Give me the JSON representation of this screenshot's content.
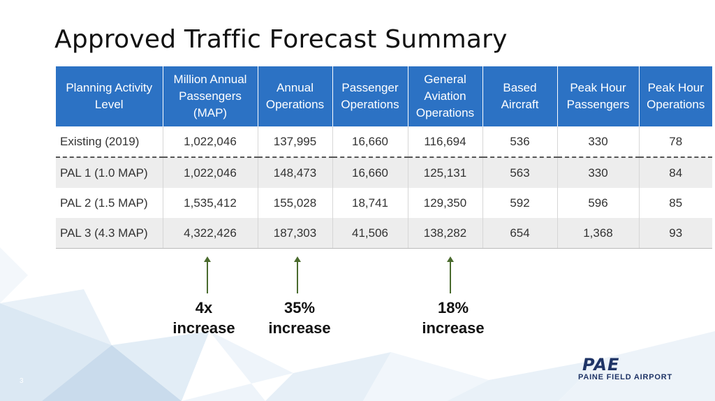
{
  "slide": {
    "title": "Approved Traffic Forecast Summary",
    "page_number": "3"
  },
  "table": {
    "headers": [
      "Planning Activity Level",
      "Million Annual Passengers (MAP)",
      "Annual Operations",
      "Passenger Operations",
      "General Aviation Operations",
      "Based Aircraft",
      "Peak Hour Passengers",
      "Peak Hour Operations"
    ],
    "rows": [
      [
        "Existing (2019)",
        "1,022,046",
        "137,995",
        "16,660",
        "116,694",
        "536",
        "330",
        "78"
      ],
      [
        "PAL 1 (1.0 MAP)",
        "1,022,046",
        "148,473",
        "16,660",
        "125,131",
        "563",
        "330",
        "84"
      ],
      [
        "PAL 2 (1.5 MAP)",
        "1,535,412",
        "155,028",
        "18,741",
        "129,350",
        "592",
        "596",
        "85"
      ],
      [
        "PAL 3 (4.3 MAP)",
        "4,322,426",
        "187,303",
        "41,506",
        "138,282",
        "654",
        "1,368",
        "93"
      ]
    ]
  },
  "callouts": [
    {
      "line1": "4x",
      "line2": "increase"
    },
    {
      "line1": "35%",
      "line2": "increase"
    },
    {
      "line1": "18%",
      "line2": "increase"
    }
  ],
  "logo": {
    "mark": "PAE",
    "subtitle": "PAINE FIELD AIRPORT"
  },
  "colors": {
    "header_bg": "#2c72c4",
    "arrow": "#4a6b2e",
    "logo": "#1f3466"
  }
}
